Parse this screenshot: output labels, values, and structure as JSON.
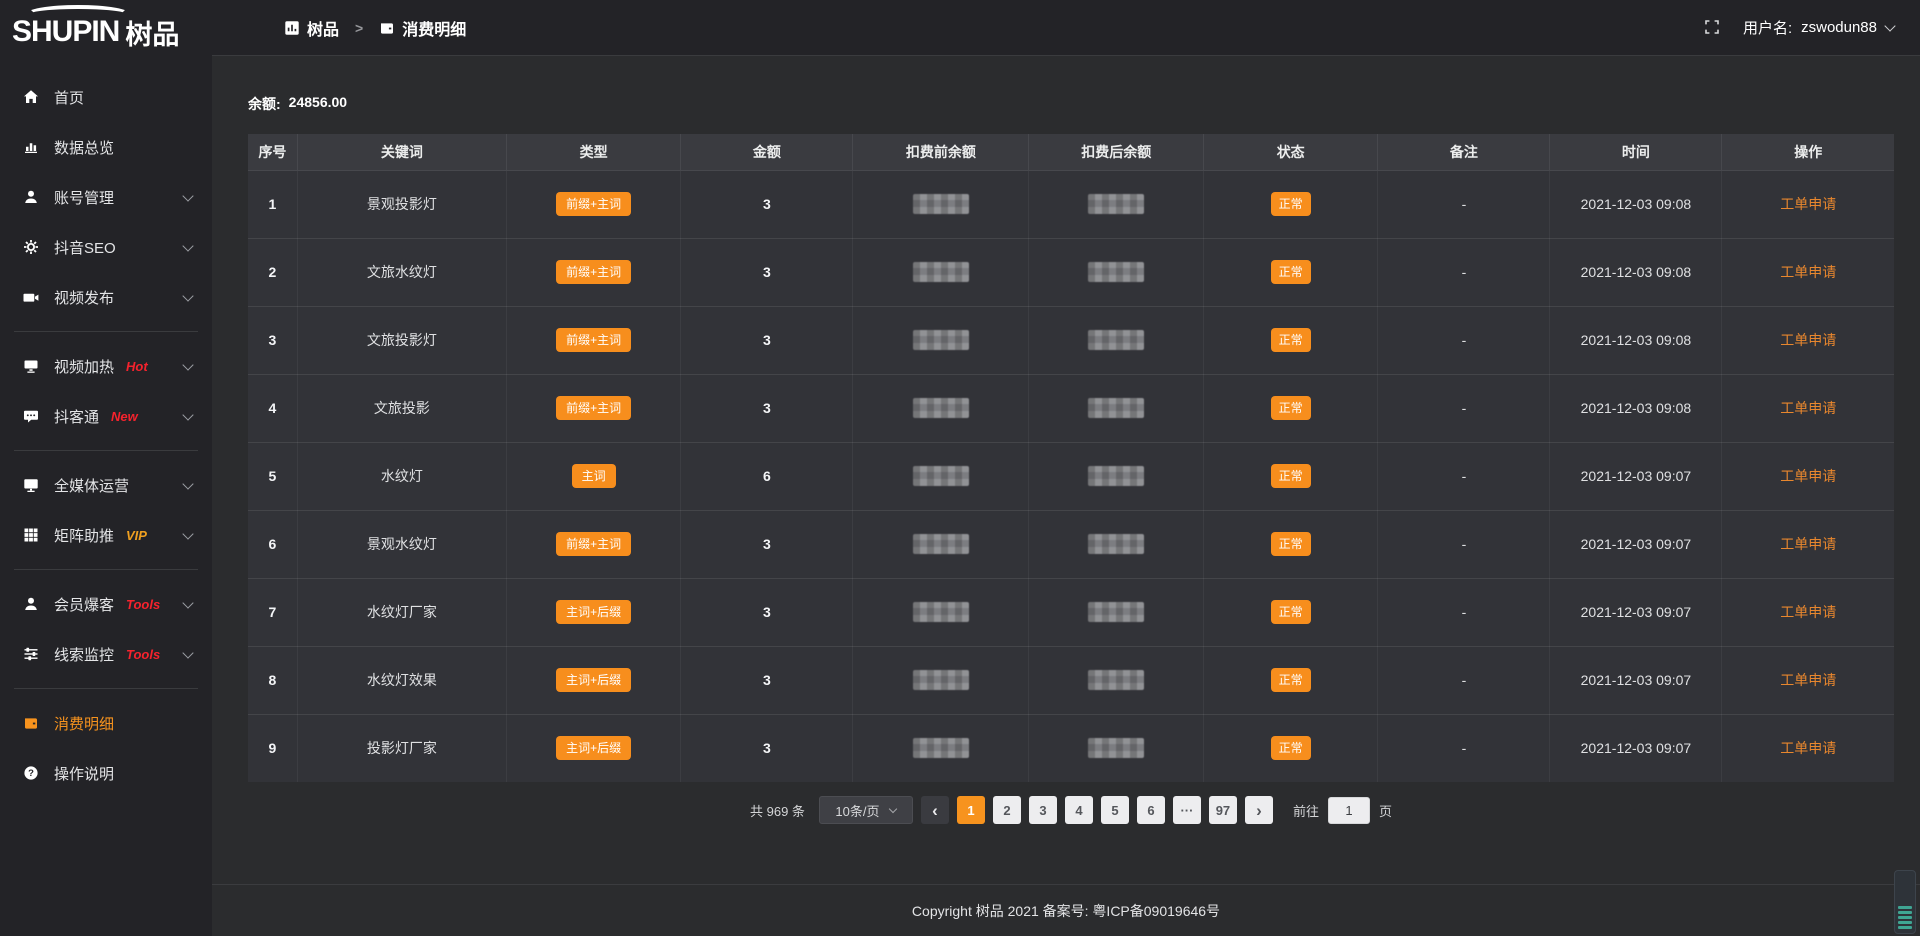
{
  "brand": {
    "logo_en": "SHUPIN",
    "logo_cn": "树品"
  },
  "header": {
    "breadcrumb": [
      {
        "icon": "dashboard",
        "label": "树品"
      },
      {
        "icon": "wallet",
        "label": "消费明细"
      }
    ],
    "breadcrumb_separator": ">",
    "fullscreen_icon": "fullscreen-icon",
    "user_label": "用户名:",
    "username": "zswodun88"
  },
  "sidebar": {
    "items": [
      {
        "icon": "home",
        "label": "首页"
      },
      {
        "icon": "chart",
        "label": "数据总览"
      },
      {
        "icon": "user",
        "label": "账号管理",
        "chevron": true
      },
      {
        "icon": "gear",
        "label": "抖音SEO",
        "chevron": true
      },
      {
        "icon": "video",
        "label": "视频发布",
        "chevron": true
      },
      {
        "divider": true
      },
      {
        "icon": "heat",
        "label": "视频加热",
        "tag": "Hot",
        "tag_color": "#f5222d",
        "chevron": true
      },
      {
        "icon": "chat",
        "label": "抖客通",
        "tag": "New",
        "tag_color": "#f5222d",
        "chevron": true
      },
      {
        "divider": true
      },
      {
        "icon": "monitor",
        "label": "全媒体运营",
        "chevron": true
      },
      {
        "icon": "grid",
        "label": "矩阵助推",
        "tag": "VIP",
        "tag_color": "#f0a020",
        "chevron": true
      },
      {
        "divider": true
      },
      {
        "icon": "member",
        "label": "会员爆客",
        "tag": "Tools",
        "tag_color": "#f5222d",
        "chevron": true
      },
      {
        "icon": "sliders",
        "label": "线索监控",
        "tag": "Tools",
        "tag_color": "#f5222d",
        "chevron": true
      },
      {
        "divider": true
      },
      {
        "icon": "wallet",
        "label": "消费明细",
        "active": true
      },
      {
        "icon": "help",
        "label": "操作说明"
      }
    ]
  },
  "main": {
    "balance_label": "余额:",
    "balance_value": "24856.00",
    "table": {
      "columns": [
        "序号",
        "关键词",
        "类型",
        "金额",
        "扣费前余额",
        "扣费后余额",
        "状态",
        "备注",
        "时间",
        "操作"
      ],
      "rows": [
        {
          "index": "1",
          "keyword": "景观投影灯",
          "type": "前缀+主词",
          "amount": "3",
          "balance_before_redacted": true,
          "balance_after_redacted": true,
          "status": "正常",
          "remark": "-",
          "time": "2021-12-03 09:08",
          "action": "工单申请"
        },
        {
          "index": "2",
          "keyword": "文旅水纹灯",
          "type": "前缀+主词",
          "amount": "3",
          "balance_before_redacted": true,
          "balance_after_redacted": true,
          "status": "正常",
          "remark": "-",
          "time": "2021-12-03 09:08",
          "action": "工单申请"
        },
        {
          "index": "3",
          "keyword": "文旅投影灯",
          "type": "前缀+主词",
          "amount": "3",
          "balance_before_redacted": true,
          "balance_after_redacted": true,
          "status": "正常",
          "remark": "-",
          "time": "2021-12-03 09:08",
          "action": "工单申请"
        },
        {
          "index": "4",
          "keyword": "文旅投影",
          "type": "前缀+主词",
          "amount": "3",
          "balance_before_redacted": true,
          "balance_after_redacted": true,
          "status": "正常",
          "remark": "-",
          "time": "2021-12-03 09:08",
          "action": "工单申请"
        },
        {
          "index": "5",
          "keyword": "水纹灯",
          "type": "主词",
          "amount": "6",
          "balance_before_redacted": true,
          "balance_after_redacted": true,
          "status": "正常",
          "remark": "-",
          "time": "2021-12-03 09:07",
          "action": "工单申请"
        },
        {
          "index": "6",
          "keyword": "景观水纹灯",
          "type": "前缀+主词",
          "amount": "3",
          "balance_before_redacted": true,
          "balance_after_redacted": true,
          "status": "正常",
          "remark": "-",
          "time": "2021-12-03 09:07",
          "action": "工单申请"
        },
        {
          "index": "7",
          "keyword": "水纹灯厂家",
          "type": "主词+后缀",
          "amount": "3",
          "balance_before_redacted": true,
          "balance_after_redacted": true,
          "status": "正常",
          "remark": "-",
          "time": "2021-12-03 09:07",
          "action": "工单申请"
        },
        {
          "index": "8",
          "keyword": "水纹灯效果",
          "type": "主词+后缀",
          "amount": "3",
          "balance_before_redacted": true,
          "balance_after_redacted": true,
          "status": "正常",
          "remark": "-",
          "time": "2021-12-03 09:07",
          "action": "工单申请"
        },
        {
          "index": "9",
          "keyword": "投影灯厂家",
          "type": "主词+后缀",
          "amount": "3",
          "balance_before_redacted": true,
          "balance_after_redacted": true,
          "status": "正常",
          "remark": "-",
          "time": "2021-12-03 09:07",
          "action": "工单申请"
        }
      ]
    },
    "pagination": {
      "total_text": "共 969 条",
      "page_size": "10条/页",
      "prev_icon": "chevron-left-icon",
      "next_icon": "chevron-right-icon",
      "pages": [
        "1",
        "2",
        "3",
        "4",
        "5",
        "6",
        "...",
        "97"
      ],
      "active_page": "1",
      "goto_label": "前往",
      "goto_value": "1",
      "goto_suffix": "页"
    }
  },
  "footer": {
    "copyright": "Copyright 树品 2021 备案号: 粤ICP备09019646号"
  },
  "colors": {
    "accent": "#f7931e",
    "badge": "#f78e1d",
    "link": "#e8872e",
    "tag_red": "#f5222d",
    "tag_vip": "#f0a020",
    "widget_stripe": "#3fa593"
  }
}
